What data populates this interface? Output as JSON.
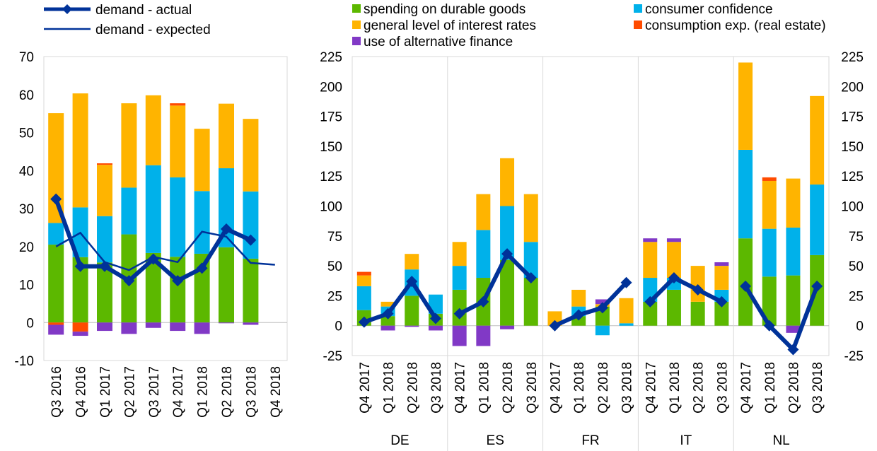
{
  "colors": {
    "durable": "#5cb800",
    "confidence": "#00b1ea",
    "interest": "#ffb400",
    "realestate": "#ff4b00",
    "altfinance": "#8139c6",
    "line": "#003299"
  },
  "legend": {
    "actual": "demand - actual",
    "expected": "demand - expected",
    "durable": "spending on durable goods",
    "interest": "general level of interest rates",
    "altfinance": "use of alternative finance",
    "confidence": "consumer confidence",
    "realestate": "consumption exp. (real estate)"
  },
  "chart_data": [
    {
      "type": "bar",
      "stacked": true,
      "categories": [
        "Q3 2016",
        "Q4 2016",
        "Q1 2017",
        "Q2 2017",
        "Q3 2017",
        "Q4 2017",
        "Q1 2018",
        "Q2 2018",
        "Q3 2018",
        "Q4 2018"
      ],
      "ylim": [
        -10,
        70
      ],
      "yticks": [
        -10,
        0,
        10,
        20,
        30,
        40,
        50,
        60,
        70
      ],
      "series": [
        {
          "name": "spending on durable goods",
          "key": "durable",
          "values": [
            20.5,
            17.2,
            15.8,
            23.2,
            18.3,
            17.3,
            18.1,
            19.8,
            16.8,
            null
          ]
        },
        {
          "name": "consumer confidence",
          "key": "confidence",
          "values": [
            5.7,
            13.1,
            12.2,
            12.3,
            23.1,
            20.9,
            16.5,
            20.8,
            17.7,
            null
          ]
        },
        {
          "name": "general level of interest rates",
          "key": "interest",
          "values": [
            28.9,
            30.0,
            13.5,
            22.2,
            18.4,
            18.9,
            16.4,
            17.0,
            19.1,
            null
          ]
        },
        {
          "name": "consumption exp. (real estate)",
          "key": "realestate",
          "values": [
            -0.6,
            -2.4,
            0.4,
            0,
            0,
            0.6,
            0,
            0,
            0,
            null
          ]
        },
        {
          "name": "use of alternative finance",
          "key": "altfinance",
          "values": [
            -2.6,
            -1.1,
            -2.2,
            -3.0,
            -1.4,
            -2.2,
            -3.0,
            -0.2,
            -0.6,
            null
          ]
        }
      ],
      "lines": [
        {
          "name": "demand - actual",
          "key": "actual",
          "values": [
            32.5,
            14.8,
            14.8,
            11.0,
            16.7,
            11.0,
            14.3,
            24.6,
            21.7,
            null
          ],
          "markers": true
        },
        {
          "name": "demand - expected",
          "key": "expected",
          "values": [
            20.0,
            23.6,
            15.9,
            13.8,
            17.3,
            15.9,
            23.9,
            22.6,
            15.7,
            15.2
          ],
          "markers": false
        }
      ]
    },
    {
      "type": "bar",
      "stacked": true,
      "groups": [
        "DE",
        "ES",
        "FR",
        "IT",
        "NL"
      ],
      "categories": [
        "Q4 2017",
        "Q1 2018",
        "Q2 2018",
        "Q3 2018"
      ],
      "ylim": [
        -25,
        225
      ],
      "yticks": [
        -25,
        0,
        25,
        50,
        75,
        100,
        125,
        150,
        175,
        200,
        225
      ],
      "secondary_yticks": [
        -25,
        0,
        25,
        50,
        75,
        100,
        125,
        150,
        175,
        200,
        225
      ],
      "series": [
        {
          "name": "spending on durable goods",
          "key": "durable",
          "values": [
            [
              13,
              8,
              25,
              10
            ],
            [
              30,
              40,
              55,
              40
            ],
            [
              0,
              8,
              16,
              0
            ],
            [
              20,
              30,
              20,
              20
            ],
            [
              73,
              41,
              42,
              59
            ]
          ]
        },
        {
          "name": "consumer confidence",
          "key": "confidence",
          "values": [
            [
              20,
              8,
              22,
              16
            ],
            [
              20,
              40,
              45,
              30
            ],
            [
              0,
              8,
              -8,
              2
            ],
            [
              20,
              10,
              0,
              10
            ],
            [
              74,
              40,
              40,
              59
            ]
          ]
        },
        {
          "name": "general level of interest rates",
          "key": "interest",
          "values": [
            [
              9,
              4,
              13,
              0
            ],
            [
              20,
              30,
              40,
              40
            ],
            [
              12,
              14,
              2,
              21
            ],
            [
              30,
              30,
              30,
              20
            ],
            [
              73,
              40,
              41,
              74
            ]
          ]
        },
        {
          "name": "consumption exp. (real estate)",
          "key": "realestate",
          "values": [
            [
              3,
              0,
              0,
              0
            ],
            [
              0,
              0,
              0,
              0
            ],
            [
              0,
              0,
              0,
              0
            ],
            [
              0,
              0,
              0,
              0
            ],
            [
              0,
              3,
              0,
              0
            ]
          ]
        },
        {
          "name": "use of alternative finance",
          "key": "altfinance",
          "values": [
            [
              0,
              -4,
              -1,
              -4
            ],
            [
              -17,
              -17,
              -3,
              0
            ],
            [
              0,
              0,
              4,
              0
            ],
            [
              3,
              3,
              0,
              3
            ],
            [
              0,
              0,
              -6,
              0
            ]
          ]
        }
      ],
      "lines": [
        {
          "name": "demand - actual",
          "key": "actual",
          "values": [
            [
              3,
              10,
              37,
              6
            ],
            [
              10,
              20,
              60,
              40
            ],
            [
              0,
              9,
              15,
              36
            ],
            [
              20,
              40,
              30,
              20
            ],
            [
              33,
              0,
              -20,
              33
            ]
          ],
          "markers": true
        }
      ]
    }
  ]
}
